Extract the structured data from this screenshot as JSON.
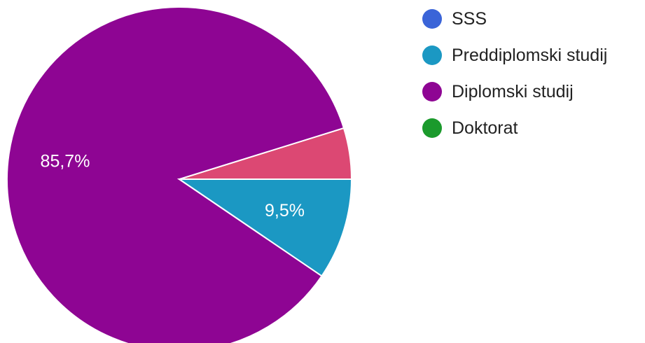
{
  "chart_data": {
    "type": "pie",
    "title": "",
    "slices": [
      {
        "label": "SSS",
        "value": 0.0,
        "color": "#3a64d8",
        "data_label": ""
      },
      {
        "label": "Preddiplomski studij",
        "value": 9.5,
        "color": "#1b98c3",
        "data_label": "9,5%"
      },
      {
        "label": "Diplomski studij",
        "value": 85.7,
        "color": "#8e0593",
        "data_label": "85,7%"
      },
      {
        "label": "Doktorat",
        "value": 0.0,
        "color": "#1b9a2c",
        "data_label": ""
      },
      {
        "label": "",
        "value": 4.8,
        "color": "#dc4873",
        "data_label": ""
      }
    ],
    "legend": {
      "position": "right",
      "items": [
        {
          "label": "SSS",
          "color": "#3a64d8"
        },
        {
          "label": "Preddiplomski studij",
          "color": "#1b98c3"
        },
        {
          "label": "Diplomski studij",
          "color": "#8e0593"
        },
        {
          "label": "Doktorat",
          "color": "#1b9a2c"
        }
      ]
    }
  }
}
